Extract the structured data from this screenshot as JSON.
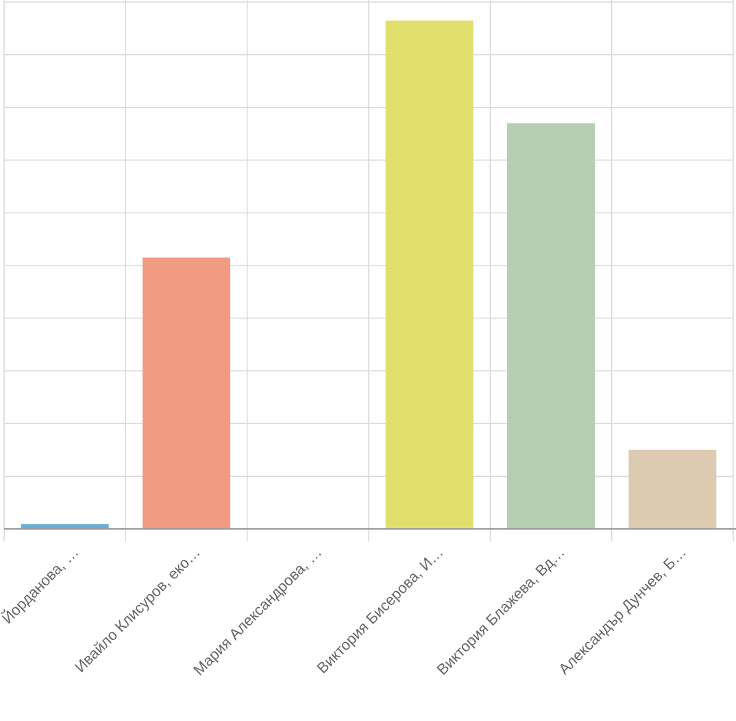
{
  "chart_data": {
    "type": "bar",
    "categories": [
      "Йорданова, …",
      "Ивайло Клисуров, еко…",
      "Мария Александрова, …",
      "Виктория Бисерова, И…",
      "Виктория Блажева, Вд…",
      "Александър Дунчев, Б…"
    ],
    "values": [
      0.9,
      51.5,
      0,
      96.5,
      77,
      15
    ],
    "colors": [
      "#6baed6",
      "#f09b82",
      "#e0df6c",
      "#e0df6c",
      "#b5cfb1",
      "#ddcbb1"
    ],
    "ylim": [
      0,
      100
    ],
    "grid": true,
    "y_tick_labels_visible": false,
    "legend": "none"
  }
}
